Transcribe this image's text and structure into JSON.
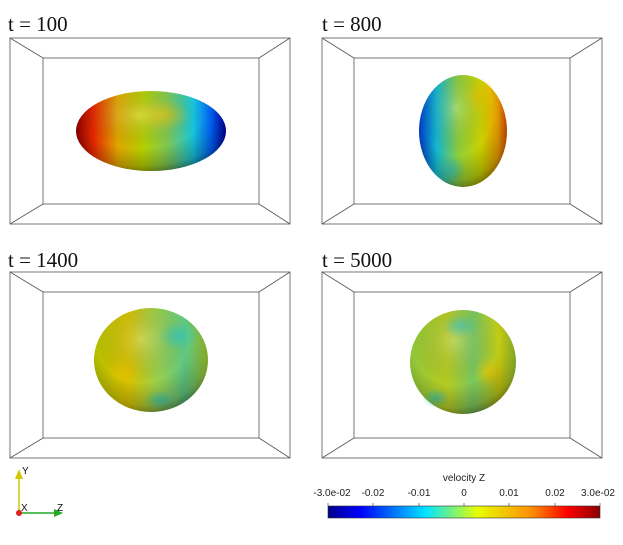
{
  "panels": [
    {
      "title": "t = 100"
    },
    {
      "title": "t = 800"
    },
    {
      "title": "t = 1400"
    },
    {
      "title": "t = 5000"
    }
  ],
  "axes_triad": {
    "y": "Y",
    "x": "X",
    "z": "Z"
  },
  "colorbar": {
    "title": "velocity Z",
    "ticks": [
      "-3.0e-02",
      "-0.02",
      "-0.01",
      "0",
      "0.01",
      "0.02",
      "3.0e-02"
    ],
    "range": [
      -0.03,
      0.03
    ],
    "colormap": "jet",
    "colors": [
      "#00008b",
      "#0000ff",
      "#00e5ff",
      "#e6ff00",
      "#ff8c00",
      "#ff0000",
      "#8b0000"
    ]
  }
}
